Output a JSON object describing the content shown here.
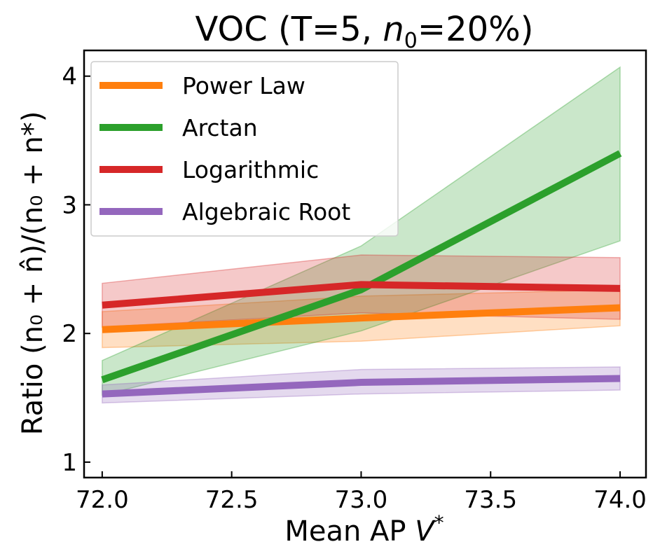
{
  "chart_data": {
    "type": "line",
    "title": "VOC (T=5, n₀=20%)",
    "title_parts": {
      "prefix": "VOC (T=5, ",
      "var": "n",
      "sub": "0",
      "suffix": "=20%)"
    },
    "xlabel": "Mean AP V*",
    "xlabel_parts": {
      "text": "Mean AP ",
      "var": "V",
      "sup": "*"
    },
    "ylabel": "Ratio (n₀ + n̂)/(n₀ + n*)",
    "x": [
      72.0,
      73.0,
      74.0
    ],
    "xlim": [
      71.93,
      74.1
    ],
    "ylim": [
      0.88,
      4.2
    ],
    "xticks": [
      72.0,
      72.5,
      73.0,
      73.5,
      74.0
    ],
    "xtick_labels": [
      "72.0",
      "72.5",
      "73.0",
      "73.5",
      "74.0"
    ],
    "yticks": [
      1,
      2,
      3,
      4
    ],
    "ytick_labels": [
      "1",
      "2",
      "3",
      "4"
    ],
    "grid": false,
    "legend_position": "top-left",
    "series": [
      {
        "name": "Power Law",
        "color": "#ff7f0e",
        "values": [
          2.03,
          2.12,
          2.2
        ],
        "lower": [
          1.89,
          1.94,
          2.06
        ],
        "upper": [
          2.17,
          2.29,
          2.34
        ]
      },
      {
        "name": "Arctan",
        "color": "#2ca02c",
        "values": [
          1.64,
          2.34,
          3.4
        ],
        "lower": [
          1.52,
          2.02,
          2.72
        ],
        "upper": [
          1.79,
          2.68,
          4.07
        ]
      },
      {
        "name": "Logarithmic",
        "color": "#d62728",
        "values": [
          2.22,
          2.38,
          2.35
        ],
        "lower": [
          2.05,
          2.16,
          2.11
        ],
        "upper": [
          2.39,
          2.61,
          2.59
        ]
      },
      {
        "name": "Algebraic Root",
        "color": "#9467bd",
        "values": [
          1.53,
          1.62,
          1.65
        ],
        "lower": [
          1.46,
          1.53,
          1.56
        ],
        "upper": [
          1.6,
          1.72,
          1.74
        ]
      }
    ]
  }
}
